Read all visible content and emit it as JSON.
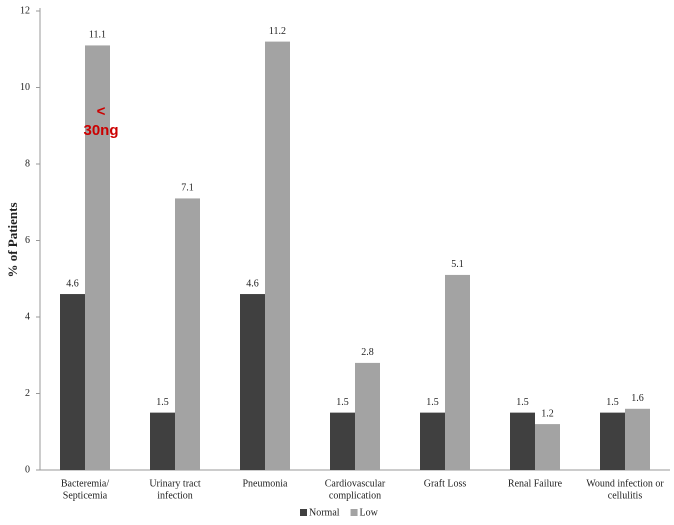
{
  "chart_data": {
    "type": "bar",
    "y_label": "% of Patients",
    "categories": [
      [
        "Bacteremia/",
        "Septicemia"
      ],
      [
        "Urinary tract",
        "infection"
      ],
      [
        "Pneumonia"
      ],
      [
        "Cardiovascular",
        "complication"
      ],
      [
        "Graft Loss"
      ],
      [
        "Renal Failure"
      ],
      [
        "Wound infection or",
        "cellulitis"
      ]
    ],
    "series": [
      {
        "name": "Normal",
        "color": "#404040",
        "values": [
          4.6,
          1.5,
          4.6,
          1.5,
          1.5,
          1.5,
          1.5
        ]
      },
      {
        "name": "Low",
        "color": "#a3a3a3",
        "values": [
          11.1,
          7.1,
          11.2,
          2.8,
          5.1,
          1.2,
          1.6
        ]
      }
    ],
    "annotation": {
      "lines": [
        "<",
        "30ng"
      ],
      "color": "#cc0000"
    },
    "ylim": [
      0,
      12
    ],
    "yticks": [
      0,
      2,
      4,
      6,
      8,
      10,
      12
    ],
    "grid": false,
    "legend": "bottom"
  }
}
